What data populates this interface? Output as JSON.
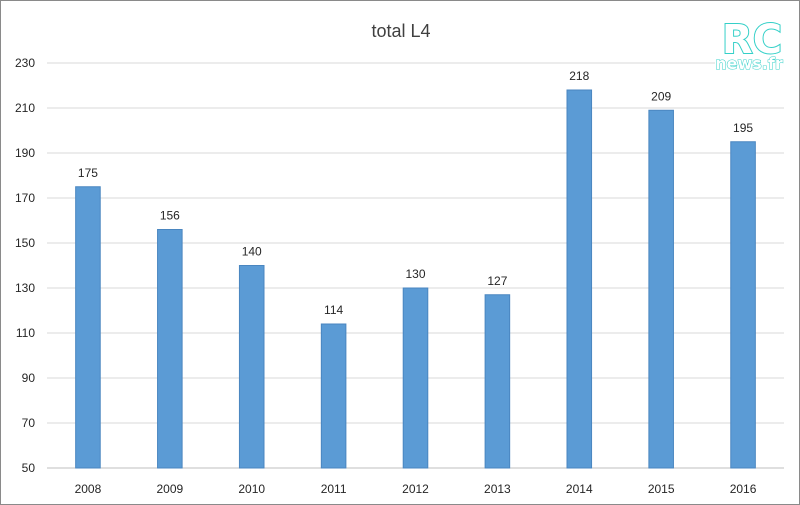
{
  "chart_data": {
    "type": "bar",
    "title": "total L4",
    "categories": [
      "2008",
      "2009",
      "2010",
      "2011",
      "2012",
      "2013",
      "2014",
      "2015",
      "2016"
    ],
    "values": [
      175,
      156,
      140,
      114,
      130,
      127,
      218,
      209,
      195
    ],
    "ylim": [
      50,
      230
    ],
    "yticks": [
      50,
      70,
      90,
      110,
      130,
      150,
      170,
      190,
      210,
      230
    ],
    "grid": true,
    "data_labels": true,
    "bar_color": "#5b9bd5",
    "bar_border_color": "#4a86c0"
  },
  "watermark": {
    "brand": "RC",
    "domain": "news.fr",
    "color": "#34d0c8"
  }
}
